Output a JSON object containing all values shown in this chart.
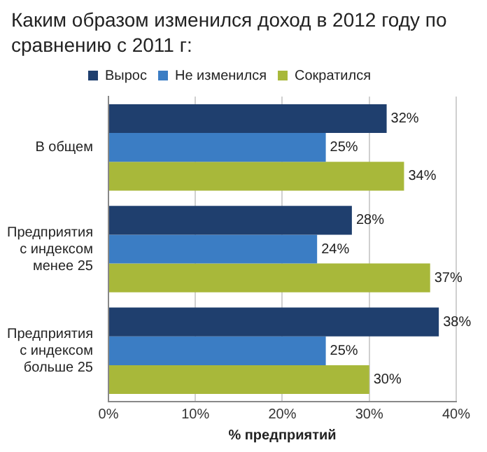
{
  "chart_data": {
    "type": "bar",
    "orientation": "horizontal",
    "title": "Каким образом изменился доход в 2012 году по сравнению с 2011 г:",
    "xlabel": "% предприятий",
    "categories": [
      "В общем",
      "Предприятия\nс индексом\nменее 25",
      "Предприятия\nс индексом\nбольше 25"
    ],
    "series": [
      {
        "name": "Вырос",
        "color": "#1f3f6e",
        "values": [
          32,
          28,
          38
        ],
        "value_labels": [
          "32%",
          "28%",
          "38%"
        ]
      },
      {
        "name": "Не изменился",
        "color": "#3b7dc4",
        "values": [
          25,
          24,
          25
        ],
        "value_labels": [
          "25%",
          "24%",
          "25%"
        ]
      },
      {
        "name": "Сократился",
        "color": "#a8b83a",
        "values": [
          34,
          37,
          30
        ],
        "value_labels": [
          "34%",
          "37%",
          "30%"
        ]
      }
    ],
    "xlim": [
      0,
      40
    ],
    "xticks": [
      {
        "value": 0,
        "label": "0%"
      },
      {
        "value": 10,
        "label": "10%"
      },
      {
        "value": 20,
        "label": "20%"
      },
      {
        "value": 30,
        "label": "30%"
      },
      {
        "value": 40,
        "label": "40%"
      }
    ],
    "grid": "x",
    "legend": "top"
  }
}
